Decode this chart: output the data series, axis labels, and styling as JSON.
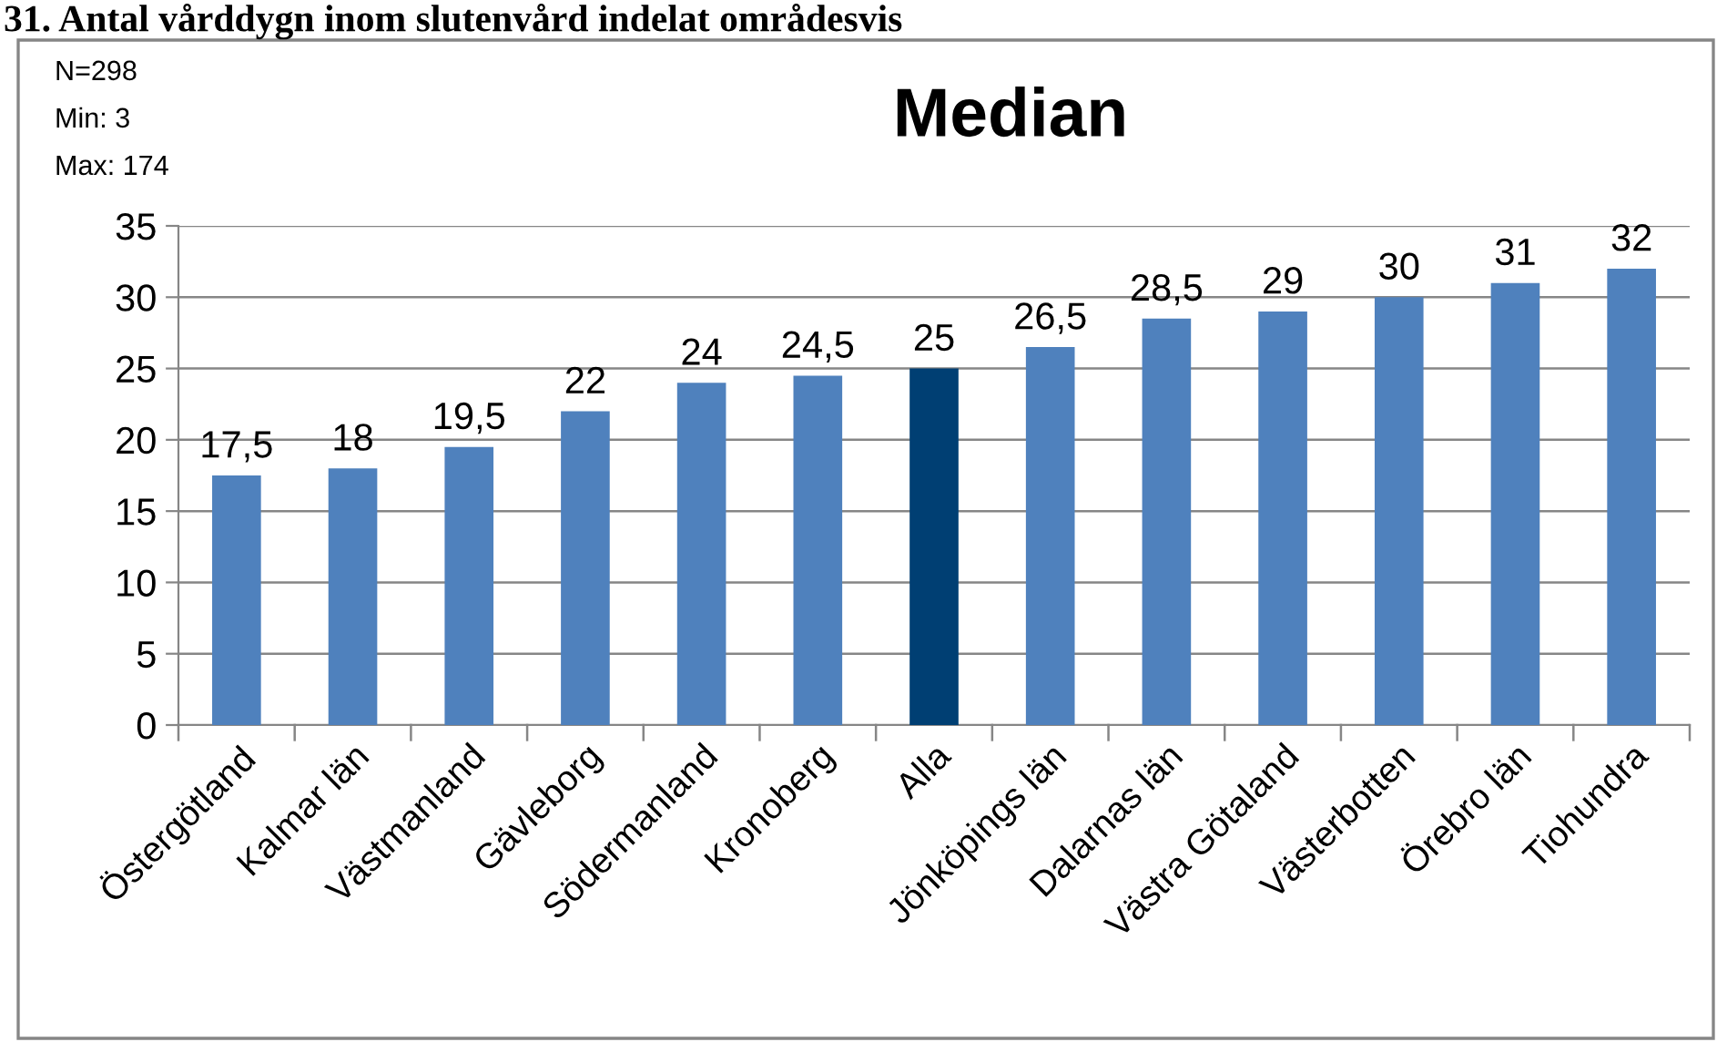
{
  "chart_data": {
    "type": "bar",
    "title": "Median",
    "subtitle": "31. Antal vårddygn inom slutenvård indelat områdesvis",
    "annotations": [
      "N=298",
      "Min: 3",
      "Max: 174"
    ],
    "categories": [
      "Östergötland",
      "Kalmar län",
      "Västmanland",
      "Gävleborg",
      "Södermanland",
      "Kronoberg",
      "Alla",
      "Jönköpings län",
      "Dalarnas län",
      "Västra Götaland",
      "Västerbotten",
      "Örebro län",
      "Tiohundra"
    ],
    "values": [
      17.5,
      18,
      19.5,
      22,
      24,
      24.5,
      25,
      26.5,
      28.5,
      29,
      30,
      31,
      32
    ],
    "value_labels": [
      "17,5",
      "18",
      "19,5",
      "22",
      "24",
      "24,5",
      "25",
      "26,5",
      "28,5",
      "29",
      "30",
      "31",
      "32"
    ],
    "colors": [
      "#4f81bd",
      "#4f81bd",
      "#4f81bd",
      "#4f81bd",
      "#4f81bd",
      "#4f81bd",
      "#003f73",
      "#4f81bd",
      "#4f81bd",
      "#4f81bd",
      "#4f81bd",
      "#4f81bd",
      "#4f81bd"
    ],
    "ylim": [
      0,
      35
    ],
    "yticks": [
      0,
      5,
      10,
      15,
      20,
      25,
      30,
      35
    ],
    "grid": "y",
    "legend": false
  }
}
